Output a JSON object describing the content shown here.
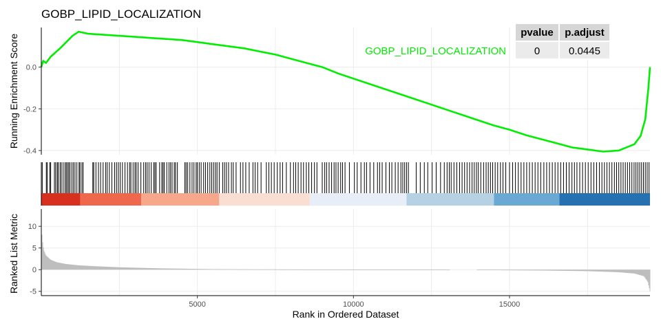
{
  "chart_data": {
    "type": "line",
    "title": "GOBP_LIPID_LOCALIZATION",
    "series_name": "GOBP_LIPID_LOCALIZATION",
    "series_color": "#00ee00",
    "xlabel": "Rank in Ordered Dataset",
    "x_ticks": [
      5000,
      10000,
      15000
    ],
    "xlim": [
      0,
      19500
    ],
    "table": {
      "headers": [
        "pvalue",
        "p.adjust"
      ],
      "values": [
        "0",
        "0.0445"
      ]
    },
    "running_score": {
      "ylabel": "Running Enrichment Score",
      "ylim": [
        -0.42,
        0.19
      ],
      "y_ticks": [
        0.0,
        -0.2,
        -0.4
      ],
      "y_tick_labels": [
        "0.0",
        "-0.2",
        "-0.4"
      ],
      "curve": [
        [
          0,
          0.0
        ],
        [
          60,
          0.03
        ],
        [
          150,
          0.02
        ],
        [
          300,
          0.05
        ],
        [
          450,
          0.07
        ],
        [
          600,
          0.09
        ],
        [
          800,
          0.12
        ],
        [
          1000,
          0.15
        ],
        [
          1200,
          0.17
        ],
        [
          1500,
          0.16
        ],
        [
          2000,
          0.155
        ],
        [
          2500,
          0.15
        ],
        [
          3000,
          0.145
        ],
        [
          3500,
          0.14
        ],
        [
          4000,
          0.135
        ],
        [
          4500,
          0.13
        ],
        [
          5000,
          0.12
        ],
        [
          5500,
          0.11
        ],
        [
          6000,
          0.1
        ],
        [
          6500,
          0.09
        ],
        [
          7000,
          0.075
        ],
        [
          7500,
          0.06
        ],
        [
          8000,
          0.04
        ],
        [
          8500,
          0.02
        ],
        [
          9000,
          0.0
        ],
        [
          9500,
          -0.03
        ],
        [
          10000,
          -0.055
        ],
        [
          10500,
          -0.08
        ],
        [
          11000,
          -0.105
        ],
        [
          11500,
          -0.13
        ],
        [
          12000,
          -0.155
        ],
        [
          12500,
          -0.18
        ],
        [
          13000,
          -0.205
        ],
        [
          13500,
          -0.23
        ],
        [
          14000,
          -0.255
        ],
        [
          14500,
          -0.28
        ],
        [
          15000,
          -0.3
        ],
        [
          15500,
          -0.325
        ],
        [
          16000,
          -0.345
        ],
        [
          16500,
          -0.365
        ],
        [
          17000,
          -0.385
        ],
        [
          17500,
          -0.395
        ],
        [
          18000,
          -0.405
        ],
        [
          18500,
          -0.4
        ],
        [
          19000,
          -0.37
        ],
        [
          19200,
          -0.33
        ],
        [
          19350,
          -0.25
        ],
        [
          19450,
          -0.1
        ],
        [
          19500,
          0.0
        ]
      ]
    },
    "gene_hits": [
      30,
      160,
      190,
      270,
      300,
      420,
      460,
      510,
      540,
      600,
      640,
      700,
      760,
      800,
      840,
      880,
      920,
      980,
      1030,
      1080,
      1140,
      1210,
      1240,
      1300,
      1340,
      1650,
      1680,
      1750,
      1830,
      1900,
      1980,
      2060,
      2110,
      2180,
      2260,
      2350,
      2410,
      2470,
      2530,
      2600,
      2680,
      2760,
      2830,
      2870,
      2940,
      3000,
      3040,
      3100,
      3190,
      3280,
      3340,
      3390,
      3450,
      3520,
      3600,
      3640,
      3680,
      3790,
      3860,
      3900,
      3940,
      4020,
      4090,
      4140,
      4190,
      4260,
      4300,
      4360,
      4600,
      4640,
      4690,
      4760,
      4830,
      4890,
      4960,
      5000,
      5060,
      5120,
      5200,
      5260,
      5330,
      5400,
      5460,
      5520,
      5580,
      5630,
      5700,
      5810,
      5870,
      5930,
      6000,
      6090,
      6150,
      6240,
      6380,
      6460,
      6550,
      6660,
      6780,
      6850,
      6930,
      7040,
      7210,
      7290,
      7370,
      7460,
      7560,
      7650,
      7730,
      7850,
      7980,
      8080,
      8150,
      8230,
      8320,
      8400,
      8490,
      8570,
      8660,
      8750,
      8830,
      9000,
      9080,
      9140,
      9220,
      9300,
      9380,
      9440,
      9510,
      9590,
      9650,
      9730,
      9870,
      10030,
      10120,
      10240,
      10350,
      10420,
      10530,
      10650,
      10770,
      10840,
      10920,
      11040,
      11150,
      11230,
      11340,
      11430,
      11520,
      11580,
      11640,
      11700,
      11760,
      12010,
      12140,
      12270,
      12380,
      12520,
      12650,
      12790,
      12910,
      13000,
      13070,
      13130,
      13220,
      13310,
      13400,
      13480,
      13560,
      13640,
      13720,
      13800,
      13870,
      13940,
      14000,
      14080,
      14170,
      14250,
      14320,
      14390,
      14460,
      14540,
      14620,
      14710,
      14790,
      14880,
      15000,
      15100,
      15190,
      15280,
      15370,
      15460,
      15550,
      15640,
      15730,
      15820,
      15910,
      16000,
      16100,
      16190,
      16280,
      16370,
      16460,
      16550,
      16640,
      16730,
      16820,
      16910,
      17000,
      17080,
      17160,
      17250,
      17340,
      17430,
      17520,
      17610,
      17700,
      17790,
      17880,
      17960,
      18040,
      18120,
      18200,
      18280,
      18360,
      18430,
      18500,
      18570,
      18640,
      18710,
      18780,
      18850,
      18920,
      18990,
      19050,
      19110,
      19170,
      19230,
      19290,
      19350,
      19410,
      19470
    ],
    "rank_bands": [
      {
        "from": 0,
        "to": 1250,
        "color": "#d7301f"
      },
      {
        "from": 1250,
        "to": 3200,
        "color": "#f0684c"
      },
      {
        "from": 3200,
        "to": 5700,
        "color": "#f7a88a"
      },
      {
        "from": 5700,
        "to": 8600,
        "color": "#fbded2"
      },
      {
        "from": 8600,
        "to": 11700,
        "color": "#e8eef8"
      },
      {
        "from": 11700,
        "to": 14500,
        "color": "#b7d1e4"
      },
      {
        "from": 14500,
        "to": 16600,
        "color": "#6aa9d4"
      },
      {
        "from": 16600,
        "to": 19500,
        "color": "#2671b1"
      }
    ],
    "ranked_metric": {
      "ylabel": "Ranked List Metric",
      "ylim": [
        -6,
        14
      ],
      "y_ticks": [
        10,
        5,
        0,
        -5
      ],
      "y_tick_labels": [
        "10",
        "5",
        "0",
        "-5"
      ],
      "fill_color": "#bebebe",
      "profile": [
        [
          0,
          11
        ],
        [
          30,
          7
        ],
        [
          80,
          4.5
        ],
        [
          150,
          3.3
        ],
        [
          300,
          2.3
        ],
        [
          500,
          1.7
        ],
        [
          800,
          1.3
        ],
        [
          1200,
          1.0
        ],
        [
          1700,
          0.8
        ],
        [
          2500,
          0.55
        ],
        [
          3800,
          0.3
        ],
        [
          5500,
          0.12
        ],
        [
          8000,
          0.04
        ],
        [
          10000,
          0.0
        ],
        [
          12000,
          -0.04
        ],
        [
          14000,
          -0.1
        ],
        [
          16000,
          -0.2
        ],
        [
          17500,
          -0.35
        ],
        [
          18500,
          -0.6
        ],
        [
          19000,
          -0.9
        ],
        [
          19300,
          -1.5
        ],
        [
          19430,
          -2.8
        ],
        [
          19500,
          -5
        ]
      ],
      "blank_range": [
        13100,
        13950
      ]
    }
  }
}
